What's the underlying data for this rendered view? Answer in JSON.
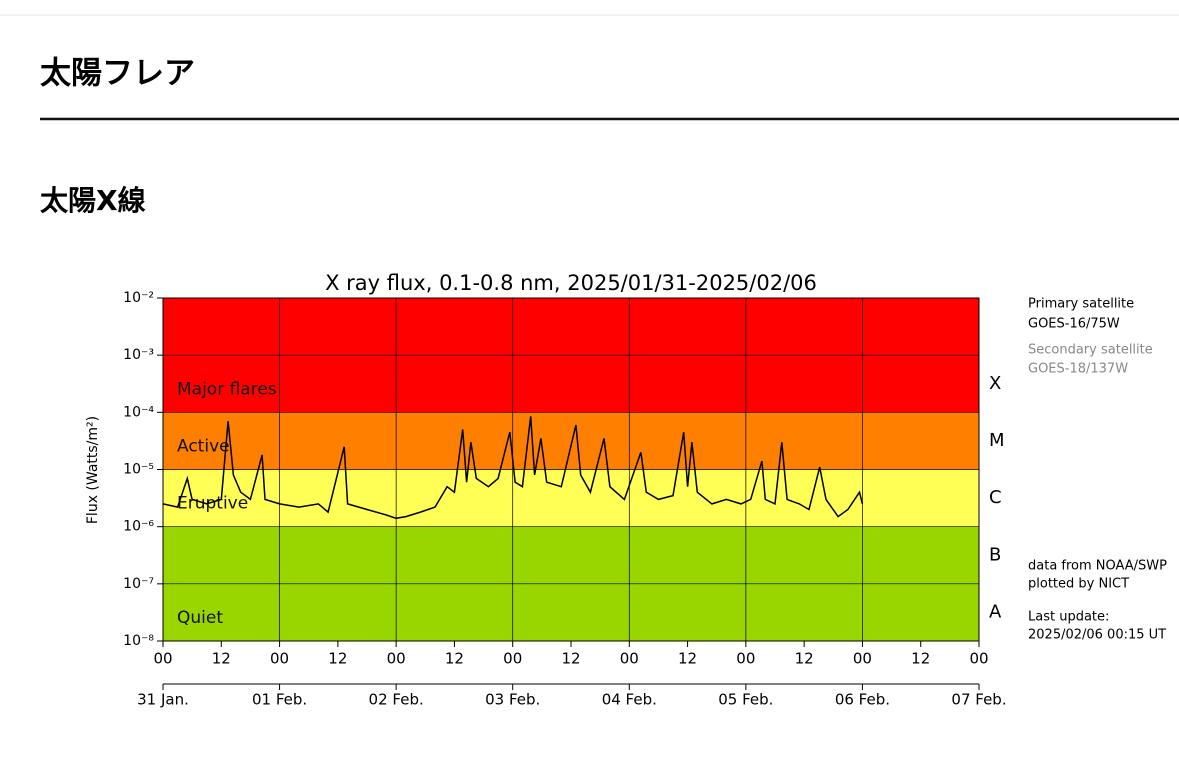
{
  "header": {
    "title": "太陽フレア"
  },
  "section": {
    "title": "太陽X線"
  },
  "chart_data": {
    "type": "line",
    "title": "X ray flux, 0.1-0.8 nm, 2025/01/31-2025/02/06",
    "y_label": "Flux (Watts/m²)",
    "y_log": true,
    "grid": true,
    "xlim": [
      0,
      168
    ],
    "ylim": [
      1e-08,
      0.01
    ],
    "yticks": [
      {
        "value": 1e-08,
        "label": "10⁻⁸"
      },
      {
        "value": 1e-07,
        "label": "10⁻⁷"
      },
      {
        "value": 1e-06,
        "label": "10⁻⁶"
      },
      {
        "value": 1e-05,
        "label": "10⁻⁵"
      },
      {
        "value": 0.0001,
        "label": "10⁻⁴"
      },
      {
        "value": 0.001,
        "label": "10⁻³"
      },
      {
        "value": 0.01,
        "label": "10⁻²"
      }
    ],
    "xticks": [
      {
        "value": 0,
        "label": "00"
      },
      12,
      {
        "value": 24,
        "label": "00"
      },
      {
        "value": 36,
        "label": "12"
      },
      {
        "value": 48,
        "label": "00"
      },
      {
        "value": 60,
        "label": "12"
      },
      {
        "value": 72,
        "label": "00"
      },
      {
        "value": 84,
        "label": "12"
      },
      {
        "value": 96,
        "label": "00"
      },
      {
        "value": 108,
        "label": "12"
      },
      {
        "value": 120,
        "label": "00"
      },
      {
        "value": 132,
        "label": "12"
      },
      {
        "value": 144,
        "label": "00"
      },
      {
        "value": 156,
        "label": "12"
      },
      {
        "value": 168,
        "label": "00"
      }
    ],
    "date_ticks": [
      {
        "value": 0,
        "label": "31 Jan."
      },
      {
        "value": 24,
        "label": "01 Feb."
      },
      {
        "value": 48,
        "label": "02 Feb."
      },
      {
        "value": 72,
        "label": "03 Feb."
      },
      {
        "value": 96,
        "label": "04 Feb."
      },
      {
        "value": 120,
        "label": "05 Feb."
      },
      {
        "value": 144,
        "label": "06 Feb."
      },
      {
        "value": 168,
        "label": "07 Feb."
      }
    ],
    "bands": [
      {
        "name": "Major flares",
        "from": 0.0001,
        "to": 0.01,
        "color": "#ff0000"
      },
      {
        "name": "Active",
        "from": 1e-05,
        "to": 0.0001,
        "color": "#ff7f00"
      },
      {
        "name": "Eruptive",
        "from": 1e-06,
        "to": 1e-05,
        "color": "#ffff55"
      },
      {
        "name": "Quiet",
        "from": 1e-08,
        "to": 1e-06,
        "color": "#99d600"
      }
    ],
    "classes": [
      "X",
      "M",
      "C",
      "B",
      "A"
    ],
    "series": [
      {
        "color": "#000000",
        "x": [
          0,
          3,
          5,
          6,
          9,
          12,
          13.4,
          14.5,
          16,
          18,
          20.4,
          21,
          24,
          28,
          32,
          34,
          37.3,
          38,
          42,
          46,
          48,
          50,
          53,
          56,
          58.5,
          60,
          61.7,
          62.5,
          63.4,
          64.5,
          67,
          69,
          71.4,
          72.5,
          74,
          75.7,
          76.5,
          77.8,
          79,
          82,
          85,
          86,
          88,
          90.8,
          92,
          95,
          98.4,
          99.5,
          102,
          105,
          107.2,
          108,
          108.9,
          110,
          113,
          116,
          119,
          121,
          123.3,
          124,
          126,
          127.4,
          128.5,
          131,
          133,
          135.2,
          136.5,
          139,
          141,
          143.4,
          144
        ],
        "values": [
          2.5e-06,
          2.2e-06,
          7e-06,
          3e-06,
          2.5e-06,
          3e-06,
          7e-05,
          8e-06,
          4e-06,
          3e-06,
          1.8e-05,
          3e-06,
          2.5e-06,
          2.2e-06,
          2.5e-06,
          1.8e-06,
          2.5e-05,
          2.5e-06,
          2e-06,
          1.6e-06,
          1.4e-06,
          1.5e-06,
          1.8e-06,
          2.2e-06,
          5e-06,
          4e-06,
          5e-05,
          6e-06,
          3e-05,
          7e-06,
          5e-06,
          7e-06,
          4.5e-05,
          6e-06,
          5e-06,
          8.5e-05,
          8e-06,
          3.5e-05,
          6e-06,
          5e-06,
          6e-05,
          8e-06,
          4e-06,
          3.5e-05,
          5e-06,
          3e-06,
          2e-05,
          4e-06,
          3e-06,
          3.5e-06,
          4.5e-05,
          5e-06,
          3e-05,
          4e-06,
          2.5e-06,
          3e-06,
          2.5e-06,
          3e-06,
          1.4e-05,
          3e-06,
          2.5e-06,
          3e-05,
          3e-06,
          2.5e-06,
          2e-06,
          1.1e-05,
          3e-06,
          1.5e-06,
          2e-06,
          4e-06,
          2.5e-06
        ]
      }
    ],
    "side_notes": [
      {
        "text": "Primary satellite",
        "color": "#000000"
      },
      {
        "text": "GOES-16/75W",
        "color": "#000000"
      },
      {
        "text": "Secondary satellite",
        "color": "#888888"
      },
      {
        "text": "GOES-18/137W",
        "color": "#888888"
      },
      {
        "text": "data from NOAA/SWP",
        "color": "#000000"
      },
      {
        "text": "plotted by NICT",
        "color": "#000000"
      },
      {
        "text": "Last update:",
        "color": "#000000"
      },
      {
        "text": "2025/02/06 00:15 UT",
        "color": "#000000"
      }
    ]
  }
}
